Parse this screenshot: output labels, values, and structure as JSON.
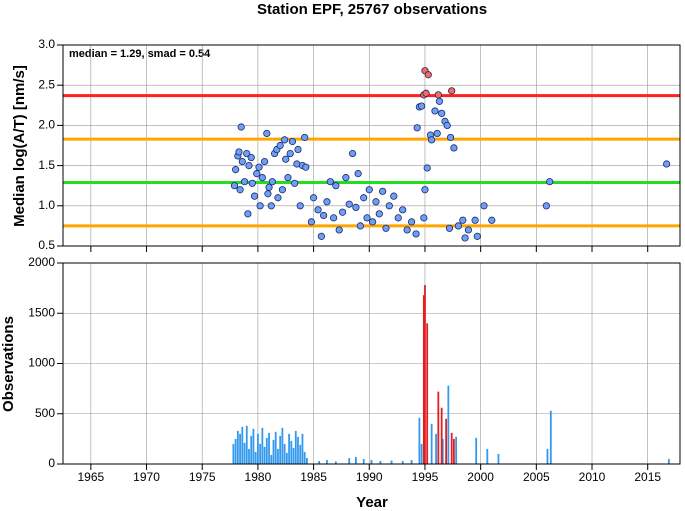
{
  "chart_data": [
    {
      "type": "scatter",
      "title": "Station EPF, 25767 observations",
      "annotation": "median = 1.29, smad = 0.54",
      "y_label": "Median log(A/T) [nm/s]",
      "xlim": [
        1962.5,
        2017.9
      ],
      "ylim": [
        0.5,
        3.0
      ],
      "yticks": [
        0.5,
        {
          "value": 1.0,
          "label": "1.0"
        },
        1.5,
        {
          "value": 2.0,
          "label": "2.0"
        },
        2.5,
        {
          "value": 3.0,
          "label": "3.0"
        }
      ],
      "grid": true,
      "reference_lines": [
        {
          "value": 2.37,
          "color": "#ff2020"
        },
        {
          "value": 1.83,
          "color": "#ffa500"
        },
        {
          "value": 1.29,
          "color": "#22dd22"
        },
        {
          "value": 0.75,
          "color": "#ffa500"
        }
      ],
      "series": [
        {
          "color": "#6f9ef5",
          "x": [
            1977.9,
            1978.0,
            1978.2,
            1978.3,
            1978.4,
            1978.5,
            1978.6,
            1978.8,
            1979.0,
            1979.1,
            1979.2,
            1979.4,
            1979.5,
            1979.7,
            1979.9,
            1980.1,
            1980.2,
            1980.4,
            1980.6,
            1980.8,
            1980.9,
            1981.0,
            1981.2,
            1981.3,
            1981.5,
            1981.7,
            1981.8,
            1982.0,
            1982.2,
            1982.4,
            1982.5,
            1982.7,
            1982.9,
            1983.1,
            1983.3,
            1983.5,
            1983.6,
            1983.8,
            1984.0,
            1984.2,
            1984.3,
            1984.8,
            1985.0,
            1985.4,
            1985.7,
            1985.9,
            1986.2,
            1986.5,
            1986.8,
            1987.0,
            1987.3,
            1987.6,
            1987.9,
            1988.2,
            1988.5,
            1988.8,
            1989.0,
            1989.2,
            1989.5,
            1989.8,
            1990.0,
            1990.3,
            1990.6,
            1990.9,
            1991.2,
            1991.5,
            1991.8,
            1992.2,
            1992.6,
            1993.0,
            1993.4,
            1993.8,
            1994.2,
            1994.3,
            1994.5,
            1994.7,
            1994.9,
            1995.0,
            1995.2,
            1995.5,
            1995.6,
            1995.9,
            1996.1,
            1996.3,
            1996.5,
            1996.8,
            1997.0,
            1997.3,
            1997.6,
            1997.2,
            1998.0,
            1998.4,
            1998.6,
            1998.9,
            1999.5,
            1999.7,
            2000.3,
            2001.0,
            2005.9,
            2006.2,
            2016.7
          ],
          "values": [
            1.25,
            1.45,
            1.62,
            1.67,
            1.2,
            1.98,
            1.55,
            1.3,
            1.65,
            0.9,
            1.5,
            1.6,
            1.28,
            1.12,
            1.4,
            1.48,
            1.0,
            1.35,
            1.55,
            1.9,
            1.15,
            1.23,
            1.0,
            1.3,
            1.65,
            1.7,
            1.1,
            1.75,
            1.2,
            1.82,
            1.58,
            1.35,
            1.65,
            1.8,
            1.28,
            1.52,
            1.7,
            1.0,
            1.5,
            1.85,
            1.48,
            0.8,
            1.1,
            0.95,
            0.62,
            0.88,
            1.05,
            1.3,
            0.85,
            1.25,
            0.7,
            0.92,
            1.35,
            1.02,
            1.65,
            0.98,
            1.4,
            0.75,
            1.1,
            0.85,
            1.2,
            0.8,
            1.05,
            0.9,
            1.18,
            0.72,
            1.0,
            1.12,
            0.85,
            0.95,
            0.7,
            0.8,
            0.65,
            1.97,
            2.23,
            2.24,
            0.85,
            1.2,
            1.47,
            1.88,
            1.82,
            2.18,
            1.9,
            2.3,
            2.15,
            2.05,
            2.0,
            1.85,
            1.72,
            0.72,
            0.75,
            0.82,
            0.6,
            0.7,
            0.82,
            0.62,
            1.0,
            0.82,
            1.0,
            1.3,
            1.52
          ]
        },
        {
          "color": "#f86a5a",
          "x": [
            1994.9,
            1995.0,
            1995.1,
            1995.3,
            1996.2,
            1997.4
          ],
          "values": [
            2.38,
            2.68,
            2.4,
            2.63,
            2.38,
            2.43
          ]
        }
      ]
    },
    {
      "type": "bar",
      "x_label": "Year",
      "y_label": "Observations",
      "xlim": [
        1962.5,
        2017.9
      ],
      "ylim": [
        0,
        2000
      ],
      "xticks": [
        1965,
        1970,
        1975,
        1980,
        1985,
        1990,
        1995,
        2000,
        2005,
        2010,
        2015
      ],
      "yticks": [
        0,
        500,
        1000,
        1500,
        2000
      ],
      "grid": true,
      "series": [
        {
          "color": "#3399ee",
          "x": [
            1977.8,
            1978.0,
            1978.2,
            1978.4,
            1978.6,
            1978.8,
            1979.0,
            1979.2,
            1979.4,
            1979.6,
            1979.8,
            1980.0,
            1980.2,
            1980.4,
            1980.6,
            1980.8,
            1981.0,
            1981.2,
            1981.4,
            1981.6,
            1981.8,
            1982.0,
            1982.2,
            1982.4,
            1982.6,
            1982.8,
            1983.0,
            1983.2,
            1983.4,
            1983.6,
            1983.8,
            1984.0,
            1984.2,
            1984.4,
            1985.5,
            1986.2,
            1987.0,
            1988.2,
            1988.8,
            1989.5,
            1990.2,
            1991.0,
            1992.0,
            1993.0,
            1993.8,
            1994.5,
            1994.7,
            1995.6,
            1996.0,
            1996.6,
            1997.1,
            1997.8,
            1999.6,
            2000.6,
            2001.6,
            2006.0,
            2006.3,
            2016.9
          ],
          "values": [
            200,
            250,
            330,
            300,
            370,
            210,
            380,
            150,
            280,
            350,
            120,
            300,
            200,
            360,
            170,
            260,
            310,
            90,
            240,
            320,
            150,
            280,
            360,
            200,
            110,
            300,
            230,
            160,
            330,
            270,
            190,
            300,
            120,
            60,
            30,
            40,
            25,
            60,
            70,
            50,
            40,
            30,
            35,
            30,
            40,
            460,
            200,
            400,
            300,
            250,
            780,
            270,
            260,
            150,
            100,
            150,
            530,
            50
          ]
        },
        {
          "color": "#e02020",
          "x": [
            1994.9,
            1995.0,
            1995.2,
            1996.2,
            1996.5,
            1996.9,
            1997.4,
            1997.6
          ],
          "values": [
            1680,
            1780,
            1400,
            720,
            560,
            450,
            310,
            250
          ]
        }
      ]
    }
  ]
}
